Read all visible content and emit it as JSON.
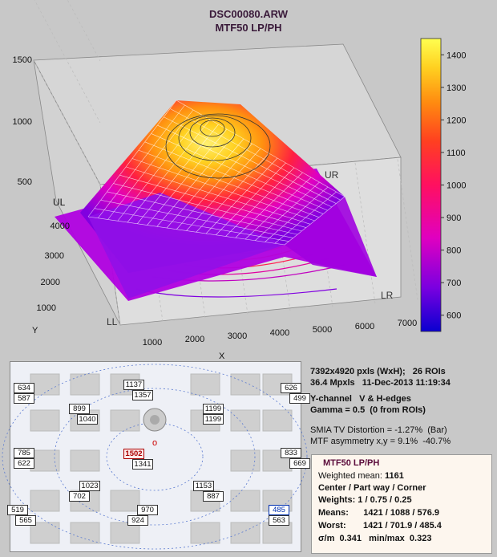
{
  "title": "DSC00080.ARW",
  "subtitle": "MTF50 LP/PH",
  "colors": {
    "background": "#c8c8c8",
    "panel": "#eef0f6",
    "summary_bg": "#fdf6ee"
  },
  "chart_data": [
    {
      "type": "surface3d",
      "title": "DSC00080.ARW",
      "subtitle": "MTF50 LP/PH",
      "xlabel": "X",
      "ylabel": "Y",
      "zlabel": "",
      "x_ticks": [
        "1000",
        "2000",
        "3000",
        "4000",
        "5000",
        "6000",
        "7000"
      ],
      "y_ticks": [
        "1000",
        "2000",
        "3000",
        "4000"
      ],
      "z_ticks": [
        "500",
        "1000",
        "1500"
      ],
      "xlim": [
        0,
        7392
      ],
      "ylim": [
        0,
        4920
      ],
      "zlim": [
        0,
        1500
      ],
      "corner_labels": [
        "UL",
        "UR",
        "LL",
        "LR"
      ],
      "colorbar": {
        "ticks": [
          "600",
          "700",
          "800",
          "900",
          "1000",
          "1100",
          "1200",
          "1300",
          "1400"
        ],
        "range": [
          550,
          1450
        ]
      },
      "surface_summary": {
        "center_peak": 1421,
        "part_way_mean": 1088,
        "corner_mean": 576.9
      }
    },
    {
      "type": "roi_map",
      "rois": [
        {
          "label": "634",
          "x": 0.08,
          "y": 0.14
        }
      ]
    }
  ],
  "roi_values": [
    {
      "v": "634",
      "r": 0
    },
    {
      "v": "587",
      "r": 0
    },
    {
      "v": "1137",
      "r": 0
    },
    {
      "v": "1357",
      "r": 0
    },
    {
      "v": "626",
      "r": 0
    },
    {
      "v": "499",
      "r": 0
    },
    {
      "v": "899",
      "r": 0
    },
    {
      "v": "1040",
      "r": 0
    },
    {
      "v": "1199",
      "r": 0
    },
    {
      "v": "1199",
      "r": 0
    },
    {
      "v": "785",
      "r": 0
    },
    {
      "v": "622",
      "r": 0
    },
    {
      "v": "1502",
      "r": 1
    },
    {
      "v": "1341",
      "r": 0
    },
    {
      "v": "833",
      "r": 0
    },
    {
      "v": "669",
      "r": 0
    },
    {
      "v": "1023",
      "r": 0
    },
    {
      "v": "702",
      "r": 0
    },
    {
      "v": "1153",
      "r": 0
    },
    {
      "v": "887",
      "r": 0
    },
    {
      "v": "519",
      "r": 0
    },
    {
      "v": "565",
      "r": 0
    },
    {
      "v": "970",
      "r": 0
    },
    {
      "v": "924",
      "r": 0
    },
    {
      "v": "485",
      "r": 2
    },
    {
      "v": "563",
      "r": 0
    }
  ],
  "info": {
    "line1": "7392x4920 pxls (WxH);   26 ROIs",
    "line2": "36.4 Mpxls   11-Dec-2013 11:19:34",
    "line3": "Y-channel   V & H-edges",
    "line4": "Gamma = 0.5  (0 from ROIs)",
    "line5": "SMIA TV Distortion = -1.27%  (Bar)",
    "line6": "MTF asymmetry x,y = 9.1%  -40.7%"
  },
  "summary": {
    "title": "MTF50 LP/PH",
    "weighted_mean_label": "Weighted mean: ",
    "weighted_mean": "1161",
    "cpc": "Center / Part way / Corner",
    "weights": "Weights: 1 / 0.75 / 0.25",
    "means": "Means:      1421 / 1088 / 576.9",
    "worst": "Worst:       1421 / 701.9 / 485.4",
    "sigma": "σ/m  0.341   min/max  0.323"
  }
}
